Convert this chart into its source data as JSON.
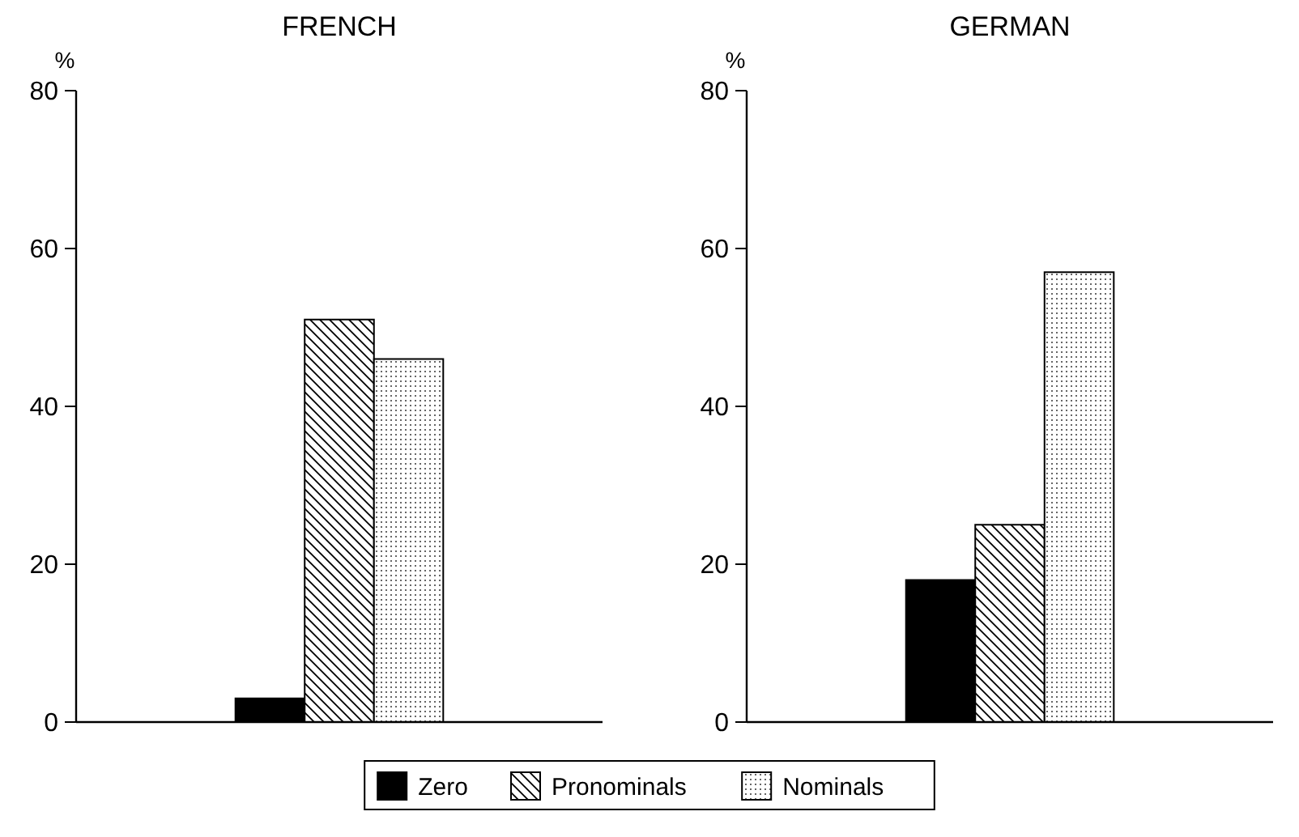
{
  "chart_data": [
    {
      "type": "bar",
      "title": "FRENCH",
      "ylabel": "%",
      "categories": [
        null
      ],
      "ylim": [
        0,
        80
      ],
      "yticks": [
        0,
        20,
        40,
        60,
        80
      ],
      "grid": false,
      "legend": "bottom",
      "series": [
        {
          "name": "Zero",
          "color": "#000000",
          "values": [
            3
          ]
        },
        {
          "name": "Pronominals",
          "color": "#000000",
          "values": [
            51
          ]
        },
        {
          "name": "Nominals",
          "color": "#000000",
          "values": [
            46
          ]
        }
      ]
    },
    {
      "type": "bar",
      "title": "GERMAN",
      "ylabel": "%",
      "categories": [
        null
      ],
      "ylim": [
        0,
        80
      ],
      "yticks": [
        0,
        20,
        40,
        60,
        80
      ],
      "grid": false,
      "legend": "bottom",
      "series": [
        {
          "name": "Zero",
          "color": "#000000",
          "values": [
            18
          ]
        },
        {
          "name": "Pronominals",
          "color": "#000000",
          "values": [
            25
          ]
        },
        {
          "name": "Nominals",
          "color": "#000000",
          "values": [
            57
          ]
        }
      ]
    }
  ]
}
